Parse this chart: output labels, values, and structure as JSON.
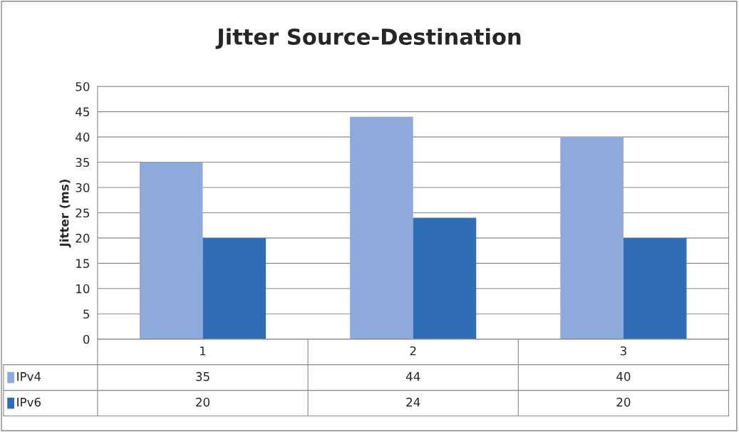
{
  "chart_data": {
    "type": "bar",
    "title": "Jitter Source-Destination",
    "ylabel": "Jitter (ms)",
    "categories": [
      "1",
      "2",
      "3"
    ],
    "series": [
      {
        "name": "IPv4",
        "color": "#8eaadb",
        "values": [
          35,
          44,
          40
        ]
      },
      {
        "name": "IPv6",
        "color": "#2f6db5",
        "values": [
          20,
          24,
          20
        ]
      }
    ],
    "ylim": [
      0,
      50
    ],
    "yticks": [
      0,
      5,
      10,
      15,
      20,
      25,
      30,
      35,
      40,
      45,
      50
    ],
    "grid": "y",
    "data_labels": true,
    "legend": "bottom left"
  }
}
